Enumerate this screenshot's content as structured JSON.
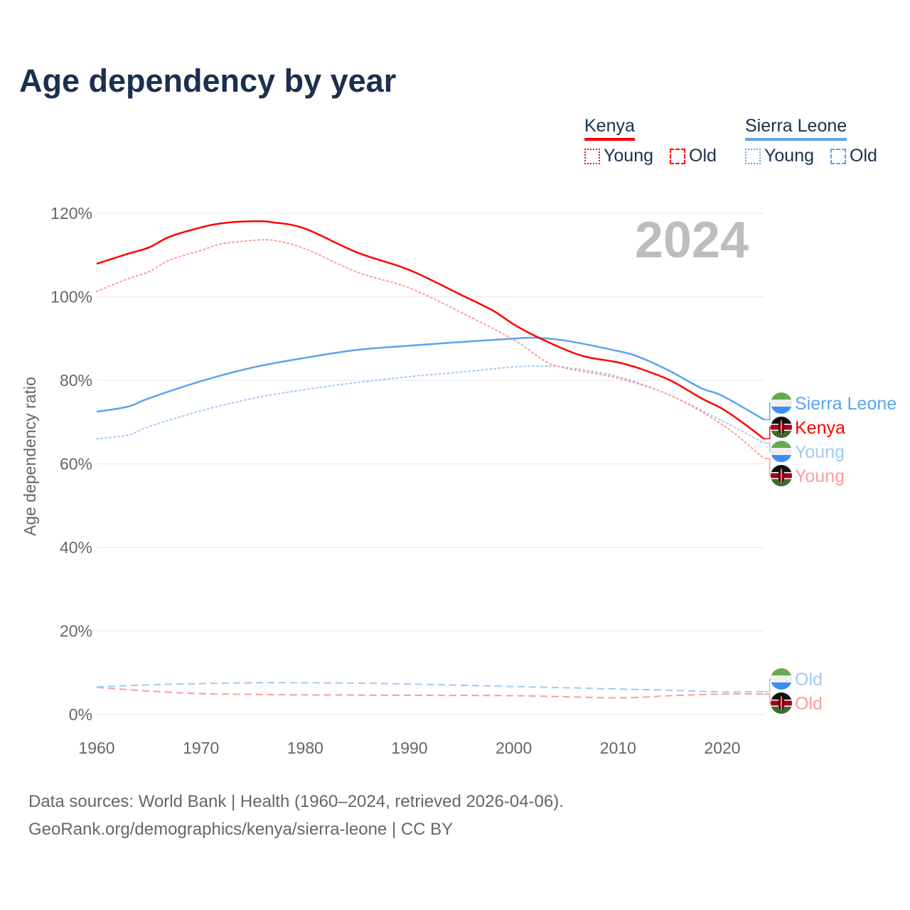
{
  "title": "Age dependency by year",
  "legend": {
    "groups": [
      {
        "name": "Kenya",
        "color": "#ff0000",
        "items": [
          "Young",
          "Old"
        ]
      },
      {
        "name": "Sierra Leone",
        "color": "#5ba4ec",
        "items": [
          "Young",
          "Old"
        ]
      }
    ]
  },
  "year_watermark": "2024",
  "footer": {
    "line1": "Data sources: World Bank | Health (1960–2024, retrieved 2026-04-06).",
    "line2": "GeoRank.org/demographics/kenya/sierra-leone | CC BY"
  },
  "chart_data": {
    "type": "line",
    "title": "Age dependency by year",
    "xlabel": "",
    "ylabel": "Age dependency ratio",
    "xlim": [
      1960,
      2024
    ],
    "ylim": [
      0,
      125
    ],
    "x_ticks": [
      "1960",
      "1970",
      "1980",
      "1990",
      "2000",
      "2010",
      "2020"
    ],
    "y_ticks": [
      "0%",
      "20%",
      "40%",
      "60%",
      "80%",
      "100%",
      "120%"
    ],
    "grid": true,
    "legend_position": "top-right",
    "series": [
      {
        "name": "Kenya",
        "end_label": "Kenya",
        "country": "kenya",
        "style": "solid",
        "color": "#ff0000",
        "points": [
          [
            1960,
            107.9
          ],
          [
            1963,
            110.3
          ],
          [
            1965,
            111.8
          ],
          [
            1967,
            114.4
          ],
          [
            1970,
            116.6
          ],
          [
            1972,
            117.6
          ],
          [
            1975,
            118.1
          ],
          [
            1977,
            117.8
          ],
          [
            1980,
            116.3
          ],
          [
            1985,
            110.6
          ],
          [
            1990,
            106.4
          ],
          [
            1995,
            100.4
          ],
          [
            1998,
            96.7
          ],
          [
            2000,
            93.4
          ],
          [
            2002,
            90.7
          ],
          [
            2005,
            87.3
          ],
          [
            2007,
            85.6
          ],
          [
            2010,
            84.3
          ],
          [
            2012,
            82.9
          ],
          [
            2015,
            80.0
          ],
          [
            2018,
            75.7
          ],
          [
            2020,
            73.2
          ],
          [
            2022,
            69.8
          ],
          [
            2024,
            66.0
          ]
        ]
      },
      {
        "name": "Kenya Young",
        "end_label": "Young",
        "country": "kenya",
        "style": "dotted",
        "color": "#ff9a9a",
        "points": [
          [
            1960,
            101.3
          ],
          [
            1963,
            104.3
          ],
          [
            1965,
            106.0
          ],
          [
            1967,
            108.8
          ],
          [
            1970,
            111.1
          ],
          [
            1972,
            112.7
          ],
          [
            1975,
            113.5
          ],
          [
            1977,
            113.5
          ],
          [
            1980,
            111.5
          ],
          [
            1985,
            105.9
          ],
          [
            1990,
            102.1
          ],
          [
            1995,
            96.2
          ],
          [
            2000,
            89.7
          ],
          [
            2003,
            84.6
          ],
          [
            2005,
            82.9
          ],
          [
            2010,
            80.5
          ],
          [
            2015,
            76.4
          ],
          [
            2020,
            69.4
          ],
          [
            2024,
            61.3
          ]
        ]
      },
      {
        "name": "Kenya Old",
        "end_label": "Old",
        "country": "kenya",
        "style": "dashed",
        "color": "#ff9a9a",
        "points": [
          [
            1960,
            6.5
          ],
          [
            1965,
            5.6
          ],
          [
            1970,
            5.0
          ],
          [
            1975,
            4.8
          ],
          [
            1980,
            4.7
          ],
          [
            1990,
            4.6
          ],
          [
            2000,
            4.5
          ],
          [
            2010,
            4.0
          ],
          [
            2015,
            4.5
          ],
          [
            2020,
            4.9
          ],
          [
            2024,
            4.9
          ]
        ]
      },
      {
        "name": "Sierra Leone",
        "end_label": "Sierra Leone",
        "country": "sierra-leone",
        "style": "solid",
        "color": "#5ba4ec",
        "points": [
          [
            1960,
            72.5
          ],
          [
            1963,
            73.7
          ],
          [
            1965,
            75.7
          ],
          [
            1970,
            79.8
          ],
          [
            1975,
            83.1
          ],
          [
            1980,
            85.4
          ],
          [
            1985,
            87.3
          ],
          [
            1990,
            88.3
          ],
          [
            1995,
            89.2
          ],
          [
            2000,
            90.0
          ],
          [
            2002,
            90.2
          ],
          [
            2005,
            89.5
          ],
          [
            2010,
            87.0
          ],
          [
            2012,
            85.6
          ],
          [
            2015,
            82.2
          ],
          [
            2018,
            78.1
          ],
          [
            2020,
            76.3
          ],
          [
            2024,
            70.6
          ]
        ]
      },
      {
        "name": "Sierra Leone Young",
        "end_label": "Young",
        "country": "sierra-leone",
        "style": "dotted",
        "color": "#a3c9f3",
        "points": [
          [
            1960,
            66.0
          ],
          [
            1963,
            66.9
          ],
          [
            1965,
            68.9
          ],
          [
            1970,
            72.7
          ],
          [
            1975,
            75.7
          ],
          [
            1980,
            77.8
          ],
          [
            1985,
            79.5
          ],
          [
            1990,
            80.9
          ],
          [
            1995,
            82.0
          ],
          [
            2000,
            83.2
          ],
          [
            2003,
            83.4
          ],
          [
            2005,
            83.1
          ],
          [
            2010,
            80.9
          ],
          [
            2015,
            76.4
          ],
          [
            2020,
            70.3
          ],
          [
            2024,
            65.0
          ]
        ]
      },
      {
        "name": "Sierra Leone Old",
        "end_label": "Old",
        "country": "sierra-leone",
        "style": "dashed",
        "color": "#a3c9f3",
        "points": [
          [
            1960,
            6.6
          ],
          [
            1965,
            7.1
          ],
          [
            1970,
            7.4
          ],
          [
            1975,
            7.6
          ],
          [
            1980,
            7.6
          ],
          [
            1985,
            7.5
          ],
          [
            1990,
            7.3
          ],
          [
            1995,
            7.0
          ],
          [
            2000,
            6.7
          ],
          [
            2005,
            6.4
          ],
          [
            2010,
            6.1
          ],
          [
            2015,
            5.8
          ],
          [
            2020,
            5.4
          ],
          [
            2024,
            5.5
          ]
        ]
      }
    ]
  }
}
